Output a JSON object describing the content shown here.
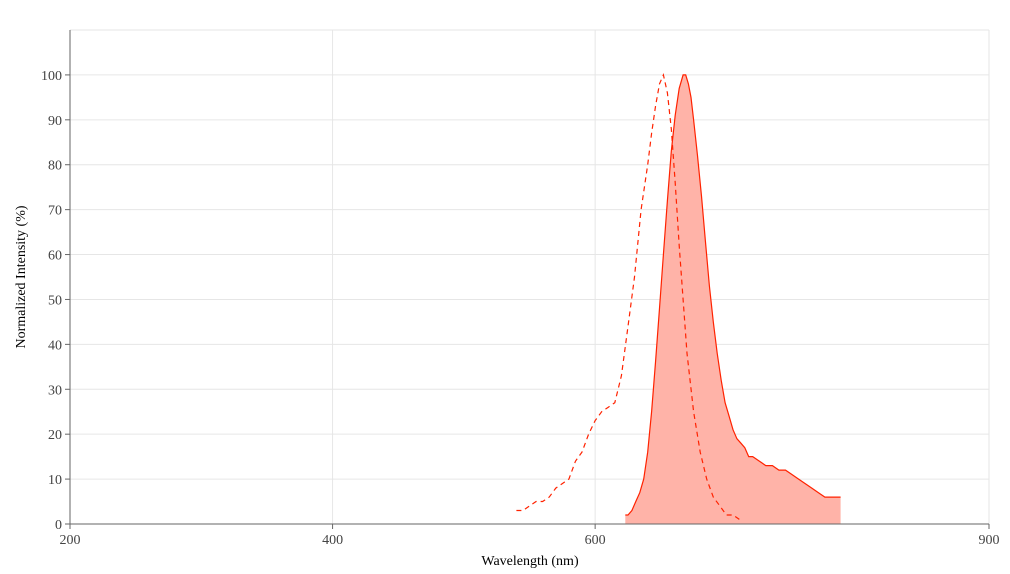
{
  "chart_data": {
    "type": "area",
    "xlabel": "Wavelength (nm)",
    "ylabel": "Normalized Intensity (%)",
    "xlim": [
      200,
      900
    ],
    "ylim": [
      0,
      110
    ],
    "xticks": [
      200,
      400,
      600,
      900
    ],
    "yticks": [
      0,
      10,
      20,
      30,
      40,
      50,
      60,
      70,
      80,
      90,
      100
    ],
    "grid": true,
    "series": [
      {
        "style": "dashed",
        "color": "#ff2200",
        "fill": false,
        "x": [
          540,
          545,
          550,
          555,
          560,
          565,
          570,
          575,
          580,
          585,
          590,
          595,
          600,
          605,
          610,
          615,
          620,
          625,
          630,
          635,
          640,
          643,
          646,
          649,
          652,
          655,
          658,
          661,
          664,
          667,
          670,
          675,
          680,
          685,
          690,
          695,
          700,
          705,
          710
        ],
        "y": [
          3,
          3,
          4,
          5,
          5,
          6,
          8,
          9,
          10,
          14,
          16,
          20,
          23,
          25,
          26,
          27,
          33,
          44,
          55,
          70,
          80,
          87,
          93,
          98,
          100,
          96,
          88,
          76,
          62,
          50,
          38,
          25,
          16,
          10,
          6,
          4,
          2,
          2,
          1
        ]
      },
      {
        "style": "solid",
        "color": "#ff2200",
        "fill": true,
        "fill_color": "#ffb3a8",
        "x": [
          623,
          625,
          628,
          631,
          634,
          637,
          640,
          643,
          646,
          649,
          652,
          655,
          658,
          661,
          664,
          667,
          669,
          671,
          673,
          675,
          678,
          681,
          684,
          687,
          690,
          693,
          696,
          699,
          702,
          705,
          708,
          711,
          714,
          717,
          720,
          725,
          730,
          735,
          740,
          745,
          750,
          755,
          760,
          765,
          770,
          775,
          778,
          781,
          784,
          787
        ],
        "y": [
          2,
          2,
          3,
          5,
          7,
          10,
          16,
          25,
          36,
          48,
          60,
          72,
          83,
          91,
          97,
          100,
          100,
          98,
          95,
          90,
          82,
          73,
          63,
          53,
          45,
          38,
          32,
          27,
          24,
          21,
          19,
          18,
          17,
          15,
          15,
          14,
          13,
          13,
          12,
          12,
          11,
          10,
          9,
          8,
          7,
          6,
          6,
          6,
          6,
          6
        ]
      }
    ]
  }
}
